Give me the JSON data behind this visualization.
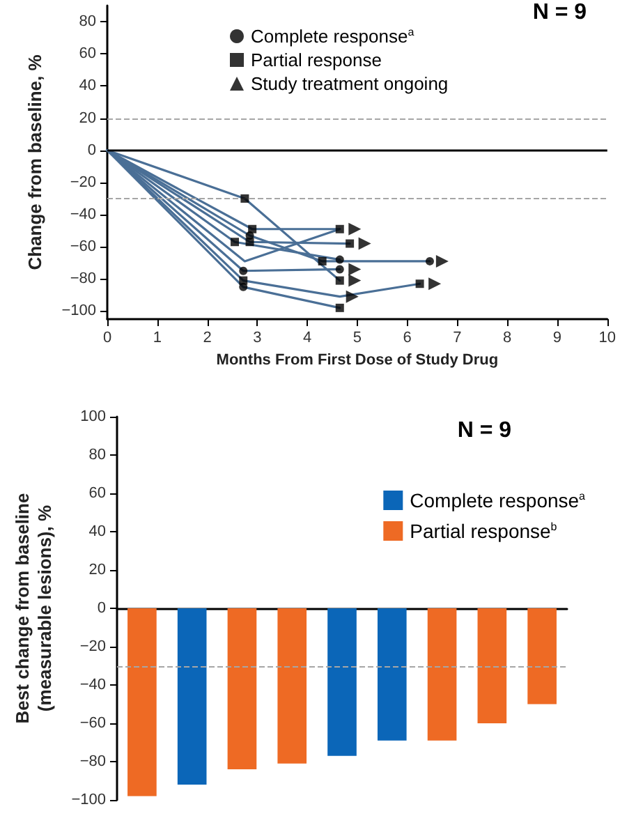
{
  "chart_data": [
    {
      "type": "line",
      "xlabel": "Months From First Dose of Study Drug",
      "ylabel": "Change from baseline, %",
      "annotations": [
        "N = 9"
      ],
      "xlim": [
        0,
        10
      ],
      "xticks": [
        0,
        1,
        2,
        3,
        4,
        5,
        6,
        7,
        8,
        9,
        10
      ],
      "ylim": [
        -105,
        90
      ],
      "yticks": [
        -100,
        -80,
        -60,
        -40,
        -20,
        0,
        20,
        40,
        60,
        80
      ],
      "legend": "top",
      "marker": "none",
      "line_style": "solid",
      "ref_lines": [
        {
          "axis": "y",
          "value": 20,
          "label": null,
          "color": "#a6a6a6",
          "line_style": "dashed"
        },
        {
          "axis": "y",
          "value": -30,
          "label": null,
          "color": "#a6a6a6",
          "line_style": "dashed"
        },
        {
          "axis": "y",
          "value": 0,
          "label": null,
          "color": "#000000",
          "line_style": "solid"
        }
      ],
      "series": [
        {
          "color": "#4a6f96",
          "x": [
            0,
            2.75,
            4.65
          ],
          "values": [
            0,
            -30,
            -81
          ]
        },
        {
          "color": "#4a6f96",
          "x": [
            0,
            2.9,
            4.65
          ],
          "values": [
            0,
            -49,
            -49
          ]
        },
        {
          "color": "#4a6f96",
          "x": [
            0,
            2.85,
            4.3,
            6.45
          ],
          "values": [
            0,
            -53,
            -69,
            -69
          ]
        },
        {
          "color": "#4a6f96",
          "x": [
            0,
            2.55,
            4.65
          ],
          "values": [
            0,
            -57,
            -68
          ]
        },
        {
          "color": "#4a6f96",
          "x": [
            0,
            2.85,
            4.85
          ],
          "values": [
            0,
            -57,
            -58
          ]
        },
        {
          "color": "#4a6f96",
          "x": [
            0,
            2.75,
            4.65
          ],
          "values": [
            0,
            -69,
            -49
          ]
        },
        {
          "color": "#4a6f96",
          "x": [
            0,
            2.72,
            4.65
          ],
          "values": [
            0,
            -75,
            -74
          ]
        },
        {
          "color": "#4a6f96",
          "x": [
            0,
            2.72,
            4.65,
            6.25
          ],
          "values": [
            0,
            -81,
            -91,
            -83
          ]
        },
        {
          "color": "#4a6f96",
          "x": [
            0,
            2.72,
            4.65
          ],
          "values": [
            0,
            -85,
            -98
          ]
        },
        {
          "type": "scatter",
          "name": "Complete response$^{a}$",
          "color": "#000000",
          "marker": "circle",
          "x": [
            2.85,
            4.65,
            6.45,
            2.72,
            4.65,
            2.72
          ],
          "values": [
            -53,
            -68,
            -69,
            -75,
            -74,
            -85
          ]
        },
        {
          "type": "scatter",
          "name": "Partial response",
          "color": "#000000",
          "marker": "square",
          "x": [
            2.75,
            4.65,
            2.9,
            4.65,
            4.3,
            2.55,
            2.85,
            4.85,
            2.72,
            6.25,
            4.65
          ],
          "values": [
            -30,
            -81,
            -49,
            -49,
            -69,
            -57,
            -57,
            -58,
            -81,
            -83,
            -98
          ]
        },
        {
          "type": "scatter",
          "name": "Study treatment ongoing",
          "color": "#000000",
          "marker": "triangle",
          "x": [
            4.95,
            5.15,
            6.7,
            4.95,
            4.95,
            4.9,
            6.55
          ],
          "values": [
            -49,
            -58,
            -69,
            -74,
            -81,
            -91,
            -83
          ]
        }
      ]
    },
    {
      "type": "bar",
      "ylabel": "Best change from baseline\n(measurable lesions), %",
      "annotations": [
        "N = 9"
      ],
      "categories": [
        null,
        null,
        null,
        null,
        null,
        null,
        null,
        null,
        null
      ],
      "ylim": [
        -100,
        100
      ],
      "yticks": [
        -100,
        -80,
        -60,
        -40,
        -20,
        0,
        20,
        40,
        60,
        80,
        100
      ],
      "tick_labels": "y",
      "legend": "top right",
      "ref_lines": [
        {
          "axis": "y",
          "value": -30,
          "label": null,
          "color": "#a6a6a6",
          "line_style": "dashed"
        }
      ],
      "series": [
        {
          "name": "Complete response$^{a}$",
          "color": "#0b66b8",
          "values": [
            null,
            -92,
            null,
            null,
            -77,
            -69,
            null,
            null,
            null
          ]
        },
        {
          "name": "Partial response$^{b}$",
          "color": "#ee6a24",
          "values": [
            -98,
            null,
            -84,
            -81,
            null,
            null,
            -69,
            -60,
            -50
          ]
        }
      ]
    }
  ]
}
